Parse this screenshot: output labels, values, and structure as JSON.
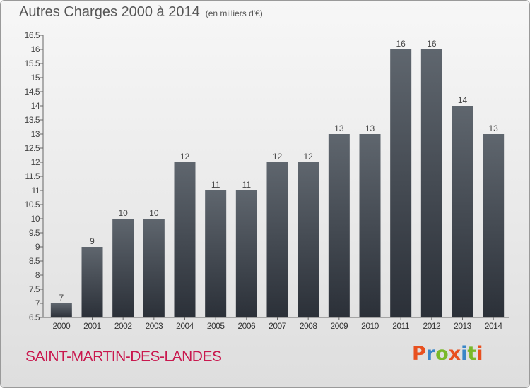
{
  "header": {
    "title": "Autres Charges 2000 à 2014",
    "unit": "(en milliers d'€)"
  },
  "footer": {
    "place": "SAINT-MARTIN-DES-LANDES",
    "brand": "Proxiti",
    "brand_colors": [
      "#e8501f",
      "#3a86c8",
      "#7ab929",
      "#e8501f",
      "#3a86c8",
      "#7ab929",
      "#e8501f"
    ]
  },
  "chart_data": {
    "type": "bar",
    "title": "Autres Charges 2000 à 2014",
    "subtitle": "(en milliers d'€)",
    "xlabel": "",
    "ylabel": "",
    "categories": [
      "2000",
      "2001",
      "2002",
      "2003",
      "2004",
      "2005",
      "2006",
      "2007",
      "2008",
      "2009",
      "2010",
      "2011",
      "2012",
      "2013",
      "2014"
    ],
    "values": [
      7,
      9,
      10,
      10,
      12,
      11,
      11,
      12,
      12,
      13,
      13,
      16,
      16,
      14,
      13
    ],
    "data_labels": [
      "7",
      "9",
      "10",
      "10",
      "12",
      "11",
      "11",
      "12",
      "12",
      "13",
      "13",
      "16",
      "16",
      "14",
      "13"
    ],
    "ylim": [
      6.5,
      16.5
    ],
    "yticks": [
      "6.5",
      "7",
      "7.5",
      "8",
      "8.5",
      "9",
      "9.5",
      "10",
      "10.5",
      "11",
      "11.5",
      "12",
      "12.5",
      "13",
      "13.5",
      "14",
      "14.5",
      "15",
      "15.5",
      "16",
      "16.5"
    ],
    "grid": false,
    "bar_color_top": "#5f666e",
    "bar_color_bottom": "#2b3038"
  }
}
